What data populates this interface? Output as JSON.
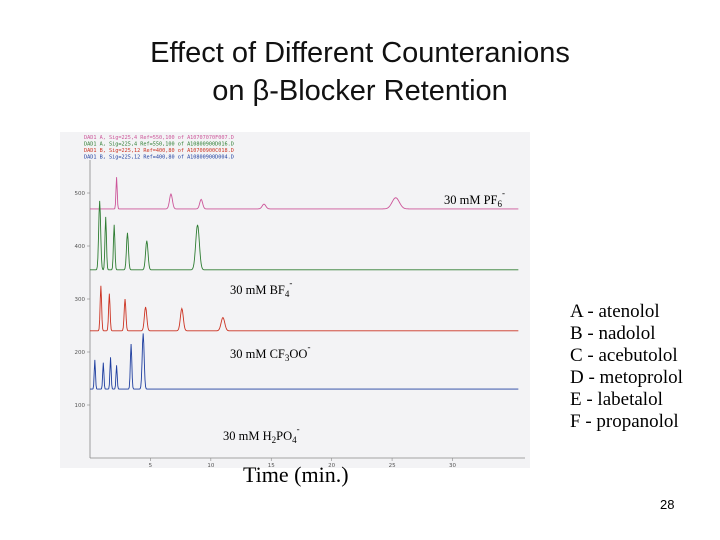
{
  "title": {
    "line1": "Effect of Different Counteranions",
    "line2": "on β-Blocker Retention"
  },
  "chart_data": {
    "type": "line",
    "xlabel": "Time (min.)",
    "x_ticks": [
      "5",
      "10",
      "15",
      "20",
      "25",
      "30"
    ],
    "y_ticks": [
      "100",
      "200",
      "300",
      "400",
      "500"
    ],
    "xlim": [
      0,
      36
    ],
    "ylim": [
      0,
      600
    ],
    "traces": [
      {
        "label": "30 mM PF",
        "sub": "6",
        "sup": "-",
        "color": "#cc5599",
        "baseline": 470,
        "peaks": [
          [
            2.2,
            60,
            0.05
          ],
          [
            6.7,
            28,
            0.12
          ],
          [
            9.2,
            18,
            0.12
          ],
          [
            14.4,
            9,
            0.15
          ],
          [
            25.3,
            21,
            0.3
          ]
        ]
      },
      {
        "label": "30 mM BF",
        "sub": "4",
        "sup": "-",
        "color": "#2e7d32",
        "baseline": 355,
        "peaks": [
          [
            0.8,
            130,
            0.08
          ],
          [
            1.3,
            100,
            0.06
          ],
          [
            2.0,
            85,
            0.06
          ],
          [
            3.1,
            70,
            0.08
          ],
          [
            4.7,
            55,
            0.1
          ],
          [
            8.9,
            85,
            0.15
          ]
        ]
      },
      {
        "label": "30 mM CF",
        "sub": "3",
        "sup": "",
        "tail": "OO",
        "tail_sup": "-",
        "color": "#cc3322",
        "baseline": 240,
        "peaks": [
          [
            0.9,
            85,
            0.06
          ],
          [
            1.6,
            70,
            0.06
          ],
          [
            2.9,
            60,
            0.07
          ],
          [
            4.6,
            45,
            0.1
          ],
          [
            7.6,
            42,
            0.12
          ],
          [
            11.0,
            25,
            0.15
          ]
        ]
      },
      {
        "label": "30 mM H",
        "sub": "2",
        "sup": "",
        "tail": "PO",
        "tail_sub": "4",
        "tail_sup": "-",
        "color": "#1f3fa0",
        "baseline": 130,
        "peaks": [
          [
            0.4,
            55,
            0.05
          ],
          [
            1.1,
            50,
            0.05
          ],
          [
            1.7,
            60,
            0.05
          ],
          [
            2.2,
            45,
            0.05
          ],
          [
            3.4,
            85,
            0.06
          ],
          [
            4.4,
            105,
            0.08
          ]
        ]
      }
    ],
    "header_lines": [
      "DAD1 A, Sig=225,4 Ref=550,100 of A10707070F007.D",
      "DAD1 A, Sig=225,4 Ref=550,100 of A10800900D016.D",
      "DAD1 B, Sig=225,12 Ref=400,80 of A10700900C018.D",
      "DAD1 B, Sig=225,12 Ref=400,80 of A10800900D004.D"
    ]
  },
  "legend": [
    "A - atenolol",
    "B - nadolol",
    "C - acebutolol",
    "D - metoprolol",
    "E - labetalol",
    "F - propanolol"
  ],
  "page_number": "28"
}
